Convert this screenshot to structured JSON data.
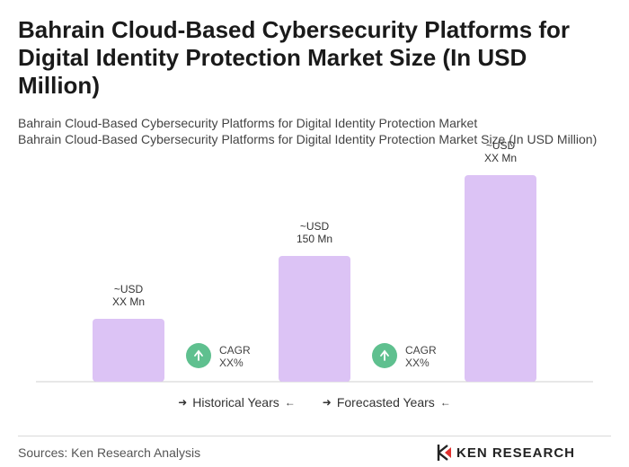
{
  "header": {
    "title": "Bahrain Cloud-Based Cybersecurity Platforms for Digital Identity Protection Market Size (In USD Million)",
    "subtitle_line1": "Bahrain Cloud-Based Cybersecurity Platforms for Digital Identity Protection Market",
    "subtitle_line2": "Bahrain Cloud-Based Cybersecurity Platforms for Digital Identity Protection Market Size (In USD Million)"
  },
  "chart_data": {
    "type": "bar",
    "bars": [
      {
        "label_line1": "~USD",
        "label_line2": "XX Mn",
        "value": 70
      },
      {
        "label_line1": "~USD",
        "label_line2": "150 Mn",
        "value": 140
      },
      {
        "label_line1": "~USD",
        "label_line2": "XX Mn",
        "value": 230
      }
    ],
    "cagr": [
      {
        "label_line1": "CAGR",
        "label_line2": "XX%"
      },
      {
        "label_line1": "CAGR",
        "label_line2": "XX%"
      }
    ],
    "bar_color": "#dcc3f5",
    "cagr_color": "#5fc08f",
    "grid": false
  },
  "legend": {
    "historical": "Historical Years",
    "forecasted": "Forecasted Years"
  },
  "footer": {
    "source": "Sources: Ken Research Analysis",
    "logo_text": "KEN RESEARCH"
  }
}
